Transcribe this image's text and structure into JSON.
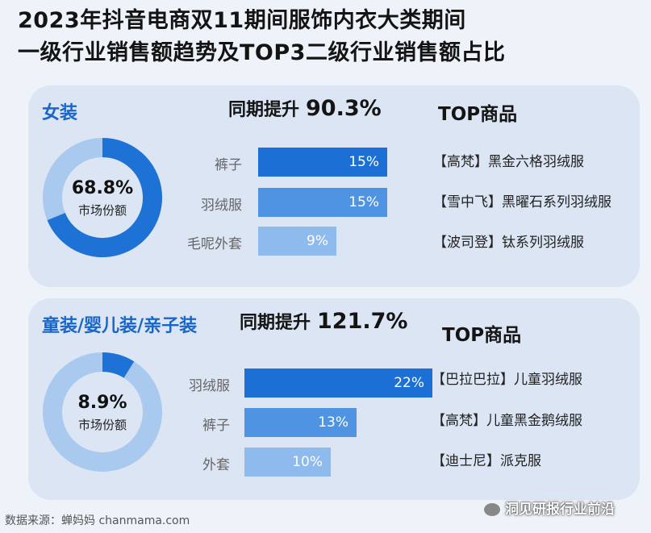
{
  "title_line1": "2023年抖音电商双11期间服饰内衣大类期间",
  "title_line2": "一级行业销售额趋势及TOP3二级行业销售额占比",
  "chart_data": [
    {
      "type": "bar",
      "category": "女装",
      "growth_label": "同期提升",
      "growth_value": "90.3%",
      "market_share": 68.8,
      "market_share_text": "68.8%",
      "market_share_label": "市场份额",
      "categories": [
        "裤子",
        "羽绒服",
        "毛呢外套"
      ],
      "values": [
        15,
        15,
        9
      ],
      "value_labels": [
        "15%",
        "15%",
        "9%"
      ],
      "top_title": "TOP商品",
      "top_products": [
        "【高梵】黑金六格羽绒服",
        "【雪中飞】黑曜石系列羽绒服",
        "【波司登】钛系列羽绒服"
      ]
    },
    {
      "type": "bar",
      "category": "童装/婴儿装/亲子装",
      "growth_label": "同期提升",
      "growth_value": "121.7%",
      "market_share": 8.9,
      "market_share_text": "8.9%",
      "market_share_label": "市场份额",
      "categories": [
        "羽绒服",
        "裤子",
        "外套"
      ],
      "values": [
        22,
        13,
        10
      ],
      "value_labels": [
        "22%",
        "13%",
        "10%"
      ],
      "top_title": "TOP商品",
      "top_products": [
        "【巴拉巴拉】儿童羽绒服",
        "【高梵】儿童黑金鹅绒服",
        "【迪士尼】派克服"
      ]
    }
  ],
  "colors": {
    "donut_main": "#1e72d6",
    "donut_rest": "#a9c9ef",
    "bar_shades": [
      "#1b6fd5",
      "#4f93e3",
      "#8fbaed"
    ]
  },
  "footer": {
    "source": "数据来源：蝉妈妈 chanmama.com",
    "watermark": "洞见研报行业前沿"
  }
}
